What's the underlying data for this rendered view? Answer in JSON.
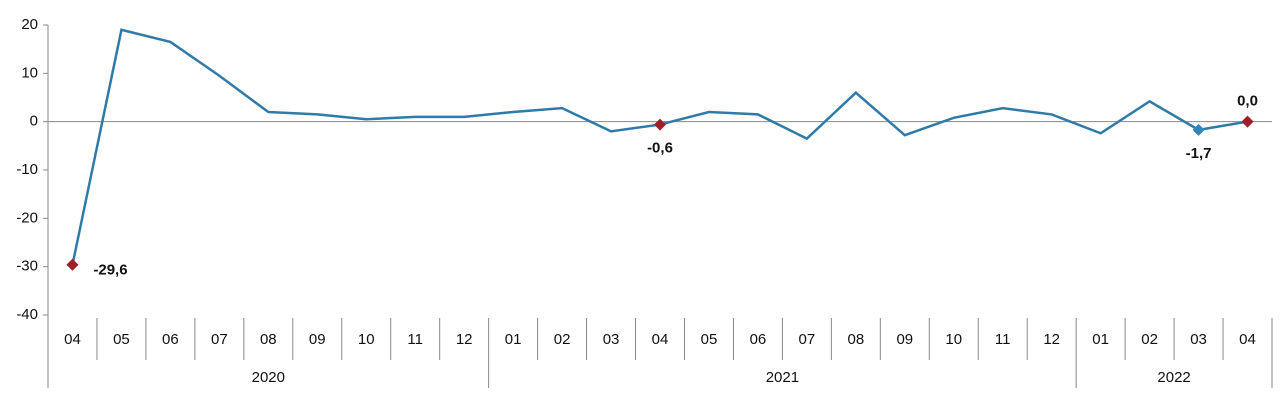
{
  "chart_data": {
    "type": "line",
    "groups": [
      {
        "name": "2020",
        "categories": [
          "04",
          "05",
          "06",
          "07",
          "08",
          "09",
          "10",
          "11",
          "12"
        ]
      },
      {
        "name": "2021",
        "categories": [
          "01",
          "02",
          "03",
          "04",
          "05",
          "06",
          "07",
          "08",
          "09",
          "10",
          "11",
          "12"
        ]
      },
      {
        "name": "2022",
        "categories": [
          "01",
          "02",
          "03",
          "04"
        ]
      }
    ],
    "values": [
      -29.6,
      19,
      16.5,
      9.5,
      2,
      1.5,
      0.5,
      1,
      1,
      2,
      2.8,
      -2,
      -0.6,
      2,
      1.5,
      -3.5,
      6,
      -2.8,
      0.8,
      2.8,
      1.5,
      -2.4,
      4.2,
      -1.7,
      0.0
    ],
    "value_labels": [
      "-29,6",
      null,
      null,
      null,
      null,
      null,
      null,
      null,
      null,
      null,
      null,
      null,
      "-0,6",
      null,
      null,
      null,
      null,
      null,
      null,
      null,
      null,
      null,
      null,
      "-1,7",
      "0,0"
    ],
    "marker_colors": [
      "#9e1f27",
      null,
      null,
      null,
      null,
      null,
      null,
      null,
      null,
      null,
      null,
      null,
      "#9e1f27",
      null,
      null,
      null,
      null,
      null,
      null,
      null,
      null,
      null,
      null,
      "#2e86c1",
      "#9e1f27"
    ],
    "color": "#2f7ba8",
    "ylim": [
      -40,
      20
    ],
    "yticks": [
      -40,
      -30,
      -20,
      -10,
      0,
      10,
      20
    ]
  }
}
